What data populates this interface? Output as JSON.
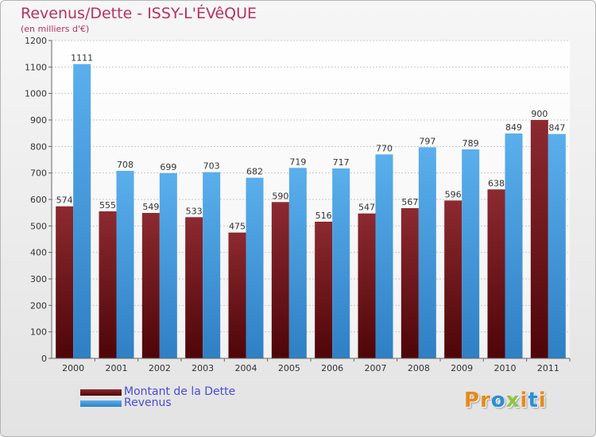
{
  "header": {
    "title": "Revenus/Dette - ISSY-L'ÉVêQUE",
    "subtitle": "(en milliers d'€)"
  },
  "legend": [
    {
      "label": "Montant de la Dette",
      "color": "#6b0e14"
    },
    {
      "label": "Revenus",
      "color": "#4a9fe0"
    }
  ],
  "logo": {
    "letters": [
      "P",
      "r",
      "o",
      "x",
      "i",
      "t",
      "i"
    ]
  },
  "colors": {
    "logo_letters": [
      "#e58a1c",
      "#e58a1c",
      "#2a8fd6",
      "#8cc63f",
      "#e58a1c",
      "#2a8fd6",
      "#e58a1c"
    ]
  },
  "chart_data": {
    "type": "bar",
    "title": "Revenus/Dette - ISSY-L'ÉVêQUE",
    "subtitle": "(en milliers d'€)",
    "categories": [
      "2000",
      "2001",
      "2002",
      "2003",
      "2004",
      "2005",
      "2006",
      "2007",
      "2008",
      "2009",
      "2010",
      "2011"
    ],
    "series": [
      {
        "name": "Montant de la Dette",
        "values": [
          574,
          555,
          549,
          533,
          475,
          590,
          516,
          547,
          567,
          596,
          638,
          900
        ],
        "color": "#7a1a20"
      },
      {
        "name": "Revenus",
        "values": [
          1111,
          708,
          699,
          703,
          682,
          719,
          717,
          770,
          797,
          789,
          849,
          847
        ],
        "color": "#4a9fe0"
      }
    ],
    "ylim": [
      0,
      1200
    ],
    "yticks": [
      0,
      100,
      200,
      300,
      400,
      500,
      600,
      700,
      800,
      900,
      1000,
      1100,
      1200
    ],
    "grid": true,
    "legend_position": "bottom-left"
  }
}
